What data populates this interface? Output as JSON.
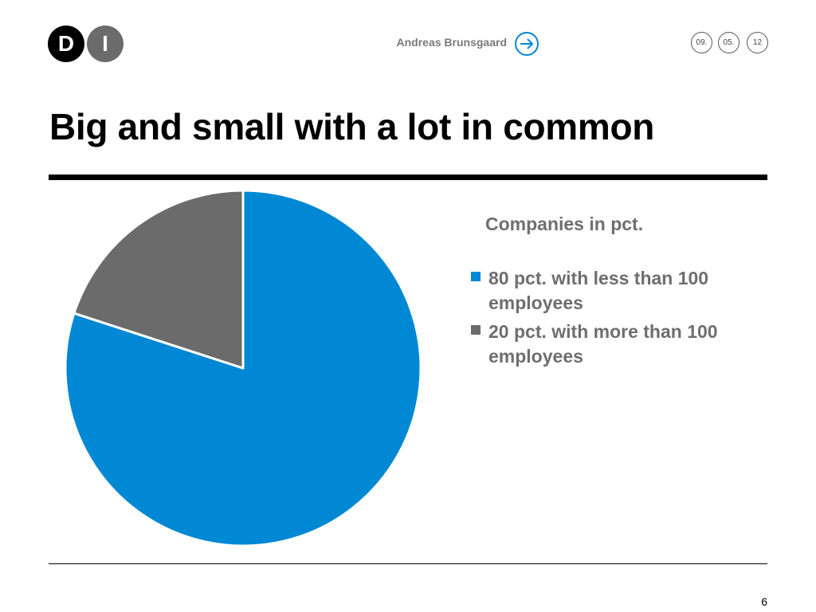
{
  "header": {
    "logo_letters": [
      "D",
      "I"
    ],
    "author": "Andreas Brunsgaard",
    "date": {
      "day": "09.",
      "month": "05.",
      "year": "12"
    }
  },
  "slide": {
    "title": "Big and small with a lot in common",
    "number": "6"
  },
  "colors": {
    "accent_blue": "#0088d4",
    "slice_gray": "#6b6b6b",
    "legend_text": "#6e6e6e",
    "logo_black": "#000000",
    "logo_gray": "#6b6b6b"
  },
  "icons": {
    "author_arrow": "arrow-right-circle-icon"
  },
  "chart_data": {
    "type": "pie",
    "title": "Companies in pct.",
    "categories": [
      "80 pct. with less than 100 employees",
      "20 pct. with more than 100 employees"
    ],
    "values": [
      80,
      20
    ],
    "colors": [
      "#0088d4",
      "#6b6b6b"
    ],
    "start_angle_deg": 0,
    "direction": "clockwise",
    "legend_position": "right"
  }
}
